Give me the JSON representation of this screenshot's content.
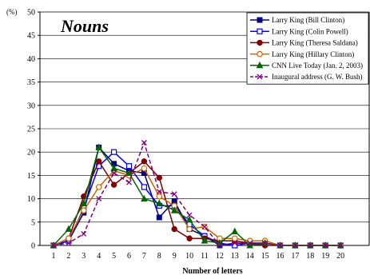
{
  "chart_data": {
    "type": "line",
    "title": "Nouns",
    "xlabel": "Number of letters",
    "ylabel": "",
    "yunit": "(%)",
    "categories": [
      "1",
      "2",
      "3",
      "4",
      "5",
      "6",
      "7",
      "8",
      "9",
      "10",
      "11",
      "12",
      "13",
      "14",
      "15",
      "16",
      "17",
      "18",
      "19",
      "20"
    ],
    "ylim": [
      0,
      50
    ],
    "yticks": [
      0,
      5,
      10,
      15,
      20,
      25,
      30,
      35,
      40,
      45,
      50
    ],
    "grid": "horizontal",
    "legend_position": "top-right",
    "series": [
      {
        "name": "Larry King (Bill Clinton)",
        "color": "#000080",
        "dash": "solid",
        "marker": "square-filled",
        "values": [
          0,
          1,
          7,
          21,
          17.5,
          16,
          15.5,
          6,
          9.5,
          3.5,
          2,
          0,
          0.5,
          0.5,
          0.5,
          0,
          0,
          0,
          0,
          0
        ]
      },
      {
        "name": "Larry King (Colin Powell)",
        "color": "#0000ff",
        "dash": "solid",
        "marker": "square-open",
        "values": [
          0,
          1,
          8,
          17,
          20,
          17,
          12.5,
          8.5,
          8.5,
          4.5,
          2,
          0.5,
          0,
          0.5,
          0.5,
          0,
          0,
          0,
          0,
          0
        ]
      },
      {
        "name": "Larry King (Theresa Saldana)",
        "color": "#800000",
        "dash": "solid",
        "marker": "circle-filled",
        "values": [
          0,
          1.5,
          10.5,
          18,
          13,
          15.5,
          18,
          14.5,
          3.5,
          1.5,
          1.5,
          1,
          1,
          0.5,
          0,
          0,
          0,
          0,
          0,
          0
        ]
      },
      {
        "name": "Larry King (Hillary Clinton)",
        "color": "#cc6600",
        "dash": "solid",
        "marker": "circle-open",
        "values": [
          0,
          1.5,
          7.5,
          12.5,
          16,
          15,
          16.5,
          10.5,
          8.5,
          3.5,
          4,
          1.5,
          1.5,
          1,
          1,
          0,
          0,
          0,
          0,
          0
        ]
      },
      {
        "name": "CNN Live Today (Jan. 2, 2003)",
        "color": "#006600",
        "dash": "solid",
        "marker": "triangle-filled",
        "values": [
          0,
          3.5,
          9,
          21,
          16.5,
          15.5,
          10,
          9,
          7.5,
          5.5,
          1,
          0.5,
          3,
          0,
          0.5,
          0,
          0,
          0,
          0,
          0
        ]
      },
      {
        "name": "Inaugural address (G. W. Bush)",
        "color": "#800080",
        "dash": "dashed",
        "marker": "x",
        "values": [
          0,
          0.5,
          2.5,
          10,
          15.5,
          13.5,
          22,
          11.5,
          11,
          6.5,
          4,
          0,
          0.5,
          0.5,
          0.5,
          0,
          0,
          0,
          0,
          0
        ]
      }
    ]
  }
}
